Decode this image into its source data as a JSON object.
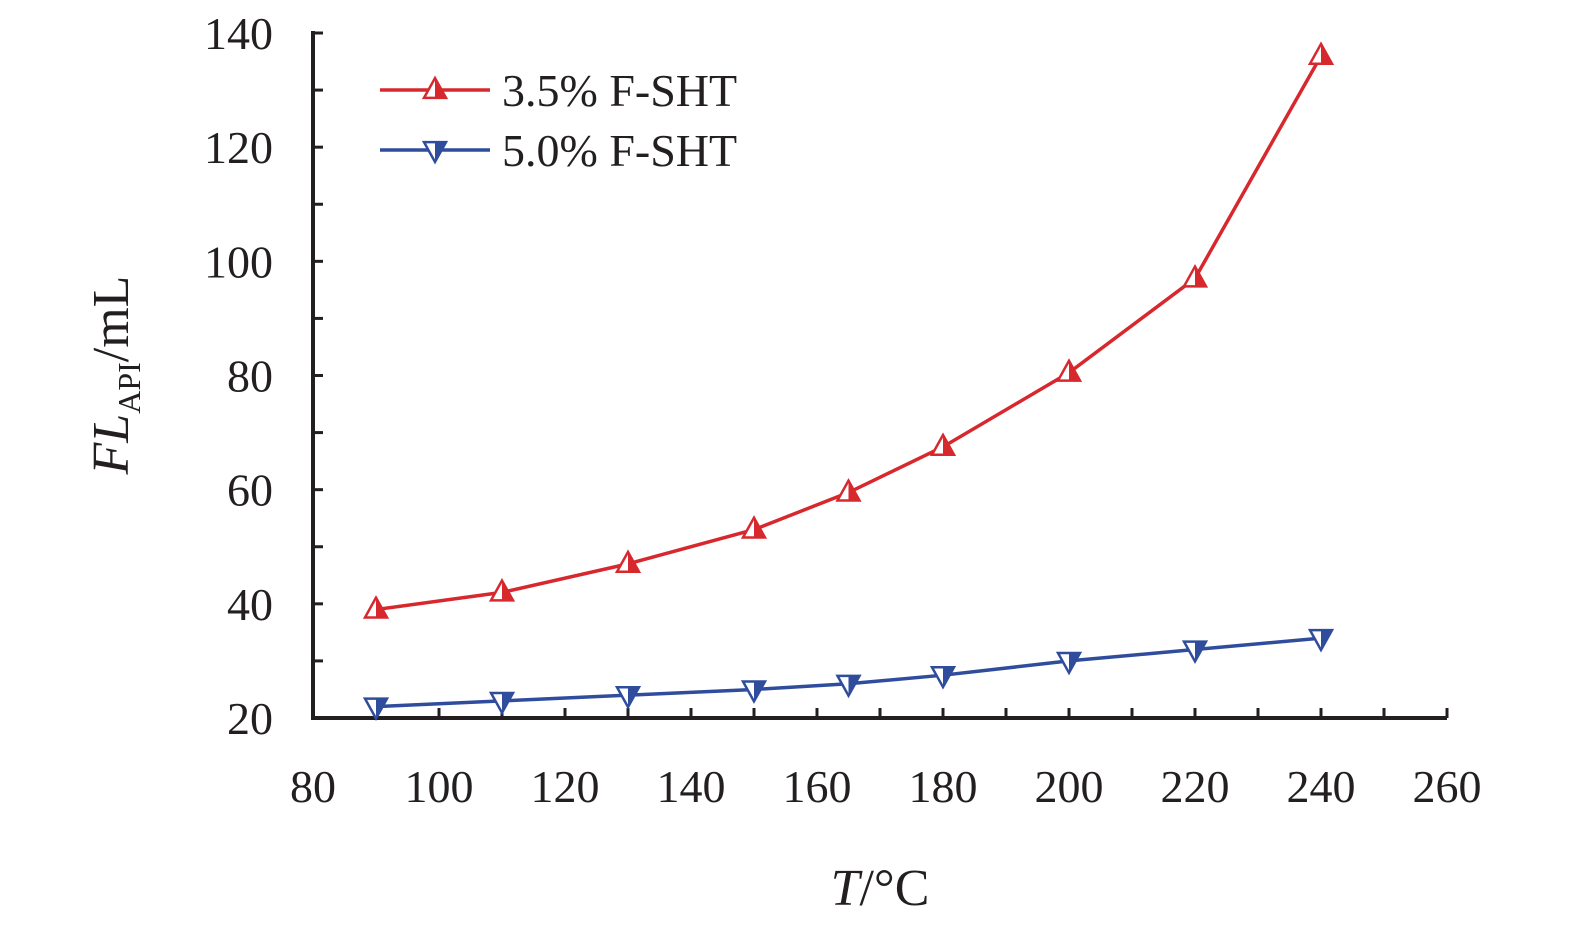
{
  "chart_data": {
    "type": "line",
    "xlabel": {
      "italic": "T",
      "rest": "/°C"
    },
    "ylabel": {
      "italic": "FL",
      "sub": "API",
      "rest": "/mL"
    },
    "xlim": [
      80,
      260
    ],
    "ylim": [
      20,
      140
    ],
    "xticks": [
      80,
      100,
      120,
      140,
      160,
      180,
      200,
      220,
      240,
      260
    ],
    "yticks": [
      20,
      40,
      60,
      80,
      100,
      120,
      140
    ],
    "grid": false,
    "legend_position": "top-left",
    "series": [
      {
        "name": "3.5% F-SHT",
        "color": "#d7282e",
        "marker": "triangle-up",
        "x": [
          90,
          110,
          130,
          150,
          165,
          180,
          200,
          220,
          240
        ],
        "y": [
          39,
          42,
          47,
          53,
          59.5,
          67.5,
          80.5,
          97,
          136
        ]
      },
      {
        "name": "5.0% F-SHT",
        "color": "#2f4d9c",
        "marker": "triangle-down",
        "x": [
          90,
          110,
          130,
          150,
          165,
          180,
          200,
          220,
          240
        ],
        "y": [
          22,
          23,
          24,
          25,
          26,
          27.5,
          30,
          32,
          34
        ]
      }
    ]
  }
}
